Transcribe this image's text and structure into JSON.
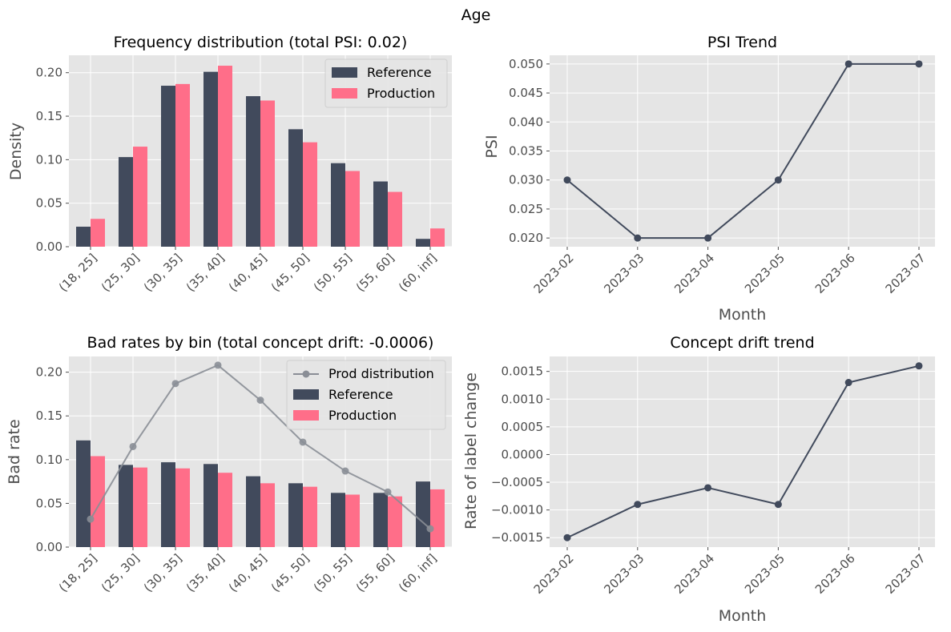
{
  "figure": {
    "title": "Age"
  },
  "colors": {
    "reference": "#414a5c",
    "production": "#ff6e89",
    "prod_distribution": "#8a8e96",
    "panel_bg": "#e5e5e5",
    "grid": "#ffffff",
    "line": "#414a5c"
  },
  "chart_data": [
    {
      "type": "bar",
      "title": "Frequency distribution (total PSI: 0.02)",
      "xlabel": "",
      "ylabel": "Density",
      "categories": [
        "(18, 25]",
        "(25, 30]",
        "(30, 35]",
        "(35, 40]",
        "(40, 45]",
        "(45, 50]",
        "(50, 55]",
        "(55, 60]",
        "(60, inf]"
      ],
      "series": [
        {
          "name": "Reference",
          "values": [
            0.023,
            0.103,
            0.185,
            0.201,
            0.173,
            0.135,
            0.096,
            0.075,
            0.009
          ]
        },
        {
          "name": "Production",
          "values": [
            0.032,
            0.115,
            0.187,
            0.208,
            0.168,
            0.12,
            0.087,
            0.063,
            0.021
          ]
        }
      ],
      "ylim": [
        0,
        0.22
      ],
      "yticks": [
        "0.00",
        "0.05",
        "0.10",
        "0.15",
        "0.20"
      ],
      "legend": "top-right",
      "grid": true
    },
    {
      "type": "line",
      "title": "PSI Trend",
      "xlabel": "Month",
      "ylabel": "PSI",
      "x": [
        "2023-02",
        "2023-03",
        "2023-04",
        "2023-05",
        "2023-06",
        "2023-07"
      ],
      "series": [
        {
          "values": [
            0.03,
            0.02,
            0.02,
            0.03,
            0.05,
            0.05
          ]
        }
      ],
      "ylim": [
        0.0185,
        0.0515
      ],
      "yticks": [
        "0.020",
        "0.025",
        "0.030",
        "0.035",
        "0.040",
        "0.045",
        "0.050"
      ],
      "grid": true
    },
    {
      "type": "bar",
      "title": "Bad rates by bin (total concept drift: -0.0006)",
      "xlabel": "",
      "ylabel": "Bad rate",
      "categories": [
        "(18, 25]",
        "(25, 30]",
        "(30, 35]",
        "(35, 40]",
        "(40, 45]",
        "(45, 50]",
        "(50, 55]",
        "(55, 60]",
        "(60, inf]"
      ],
      "series": [
        {
          "name": "Reference",
          "values": [
            0.122,
            0.094,
            0.097,
            0.095,
            0.081,
            0.073,
            0.062,
            0.062,
            0.075
          ]
        },
        {
          "name": "Production",
          "values": [
            0.104,
            0.091,
            0.09,
            0.085,
            0.073,
            0.069,
            0.06,
            0.058,
            0.066
          ]
        }
      ],
      "overlay_line": {
        "name": "Prod distribution",
        "values": [
          0.032,
          0.115,
          0.187,
          0.208,
          0.168,
          0.12,
          0.087,
          0.063,
          0.021
        ]
      },
      "ylim": [
        0,
        0.218
      ],
      "yticks": [
        "0.00",
        "0.05",
        "0.10",
        "0.15",
        "0.20"
      ],
      "legend": "top-right",
      "grid": true
    },
    {
      "type": "line",
      "title": "Concept drift trend",
      "xlabel": "Month",
      "ylabel": "Rate of label change",
      "x": [
        "2023-02",
        "2023-03",
        "2023-04",
        "2023-05",
        "2023-06",
        "2023-07"
      ],
      "series": [
        {
          "values": [
            -0.0015,
            -0.0009,
            -0.0006,
            -0.0009,
            0.0013,
            0.0016
          ]
        }
      ],
      "ylim": [
        -0.00167,
        0.00177
      ],
      "yticks": [
        "−0.0015",
        "−0.0010",
        "−0.0005",
        "0.0000",
        "0.0005",
        "0.0010",
        "0.0015"
      ],
      "grid": true
    }
  ]
}
